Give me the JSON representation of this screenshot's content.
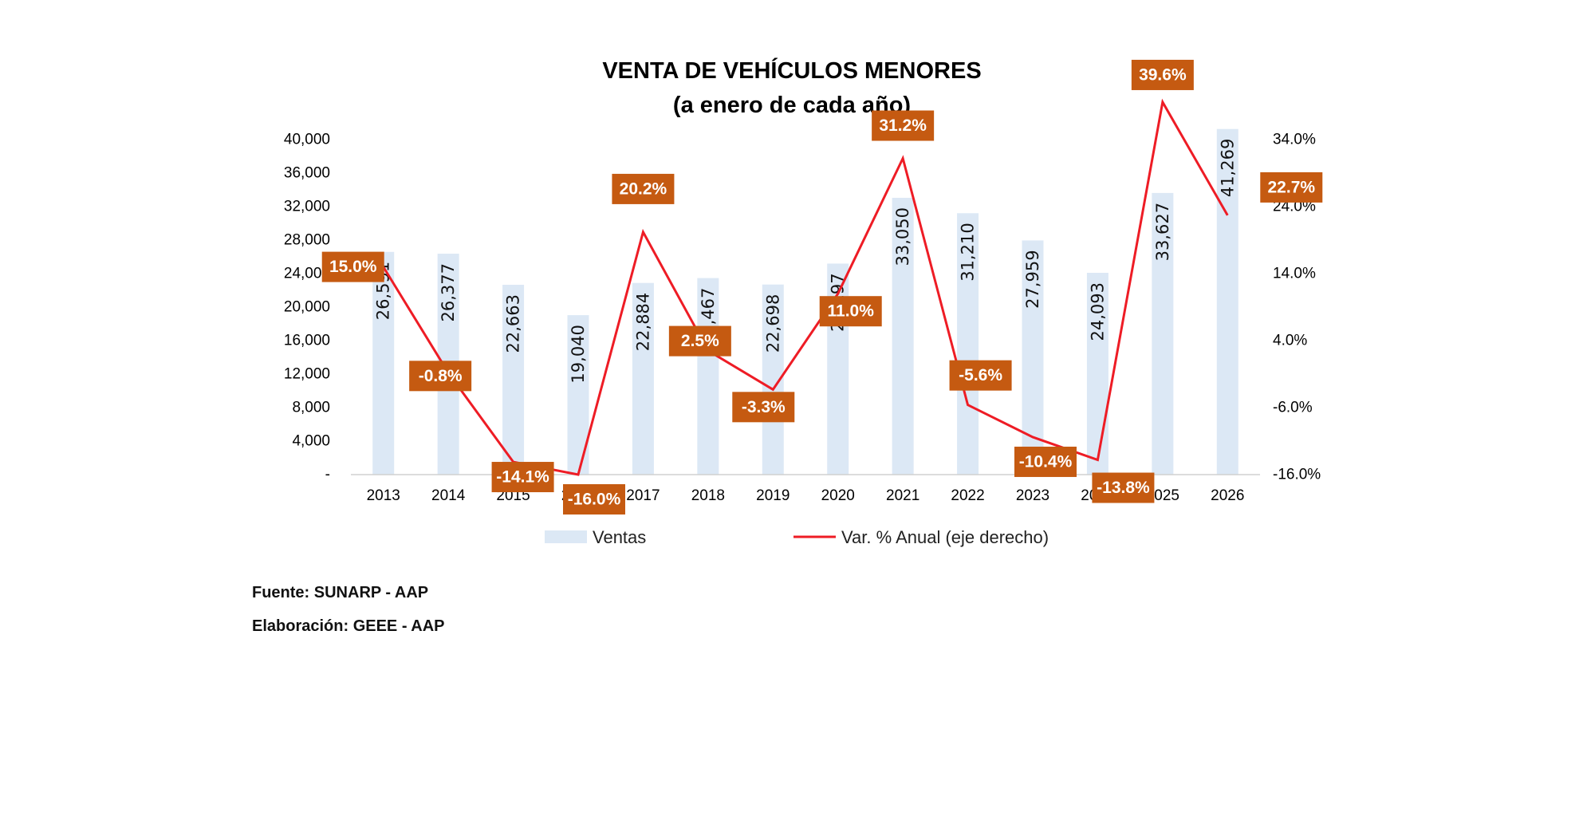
{
  "chart_data": {
    "type": "bar",
    "title": "VENTA DE VEHÍCULOS MENORES",
    "subtitle": "(a enero de cada año)",
    "categories": [
      "2013",
      "2014",
      "2015",
      "2016",
      "2017",
      "2018",
      "2019",
      "2020",
      "2021",
      "2022",
      "2023",
      "2024",
      "2025",
      "2026"
    ],
    "series": [
      {
        "name": "Ventas",
        "type": "bar",
        "axis": "left",
        "color": "#dce8f5",
        "values": [
          26591,
          26377,
          22663,
          19040,
          22884,
          23467,
          22698,
          25197,
          33050,
          31210,
          27959,
          24093,
          33627,
          41269
        ],
        "labels": [
          "26,591",
          "26,377",
          "22,663",
          "19,040",
          "22,884",
          "23,467",
          "22,698",
          "25,197",
          "33,050",
          "31,210",
          "27,959",
          "24,093",
          "33,627",
          "41,269"
        ]
      },
      {
        "name": "Var. % Anual (eje derecho)",
        "type": "line",
        "axis": "right",
        "color": "#ee1c25",
        "values": [
          15.0,
          -0.8,
          -14.1,
          -16.0,
          20.2,
          2.5,
          -3.3,
          11.0,
          31.2,
          -5.6,
          -10.4,
          -13.8,
          39.6,
          22.7
        ],
        "labels": [
          "15.0%",
          "-0.8%",
          "-14.1%",
          "-16.0%",
          "20.2%",
          "2.5%",
          "-3.3%",
          "11.0%",
          "31.2%",
          "-5.6%",
          "-10.4%",
          "-13.8%",
          "39.6%",
          "22.7%"
        ],
        "label_color": "#c55a11"
      }
    ],
    "y_left": {
      "ylim": [
        0,
        40000
      ],
      "ticks": [
        0,
        4000,
        8000,
        12000,
        16000,
        20000,
        24000,
        28000,
        32000,
        36000,
        40000
      ],
      "tick_labels": [
        "-",
        "4,000",
        "8,000",
        "12,000",
        "16,000",
        "20,000",
        "24,000",
        "28,000",
        "32,000",
        "36,000",
        "40,000"
      ]
    },
    "y_right": {
      "ylim": [
        -16,
        34
      ],
      "ticks": [
        -16,
        -6,
        4,
        14,
        24,
        34
      ],
      "tick_labels": [
        "-16.0%",
        "-6.0%",
        "4.0%",
        "14.0%",
        "24.0%",
        "34.0%"
      ]
    },
    "grid": false,
    "legend": "bottom"
  },
  "notes": {
    "source": "Fuente: SUNARP - AAP",
    "elaboration": "Elaboración: GEEE - AAP"
  }
}
